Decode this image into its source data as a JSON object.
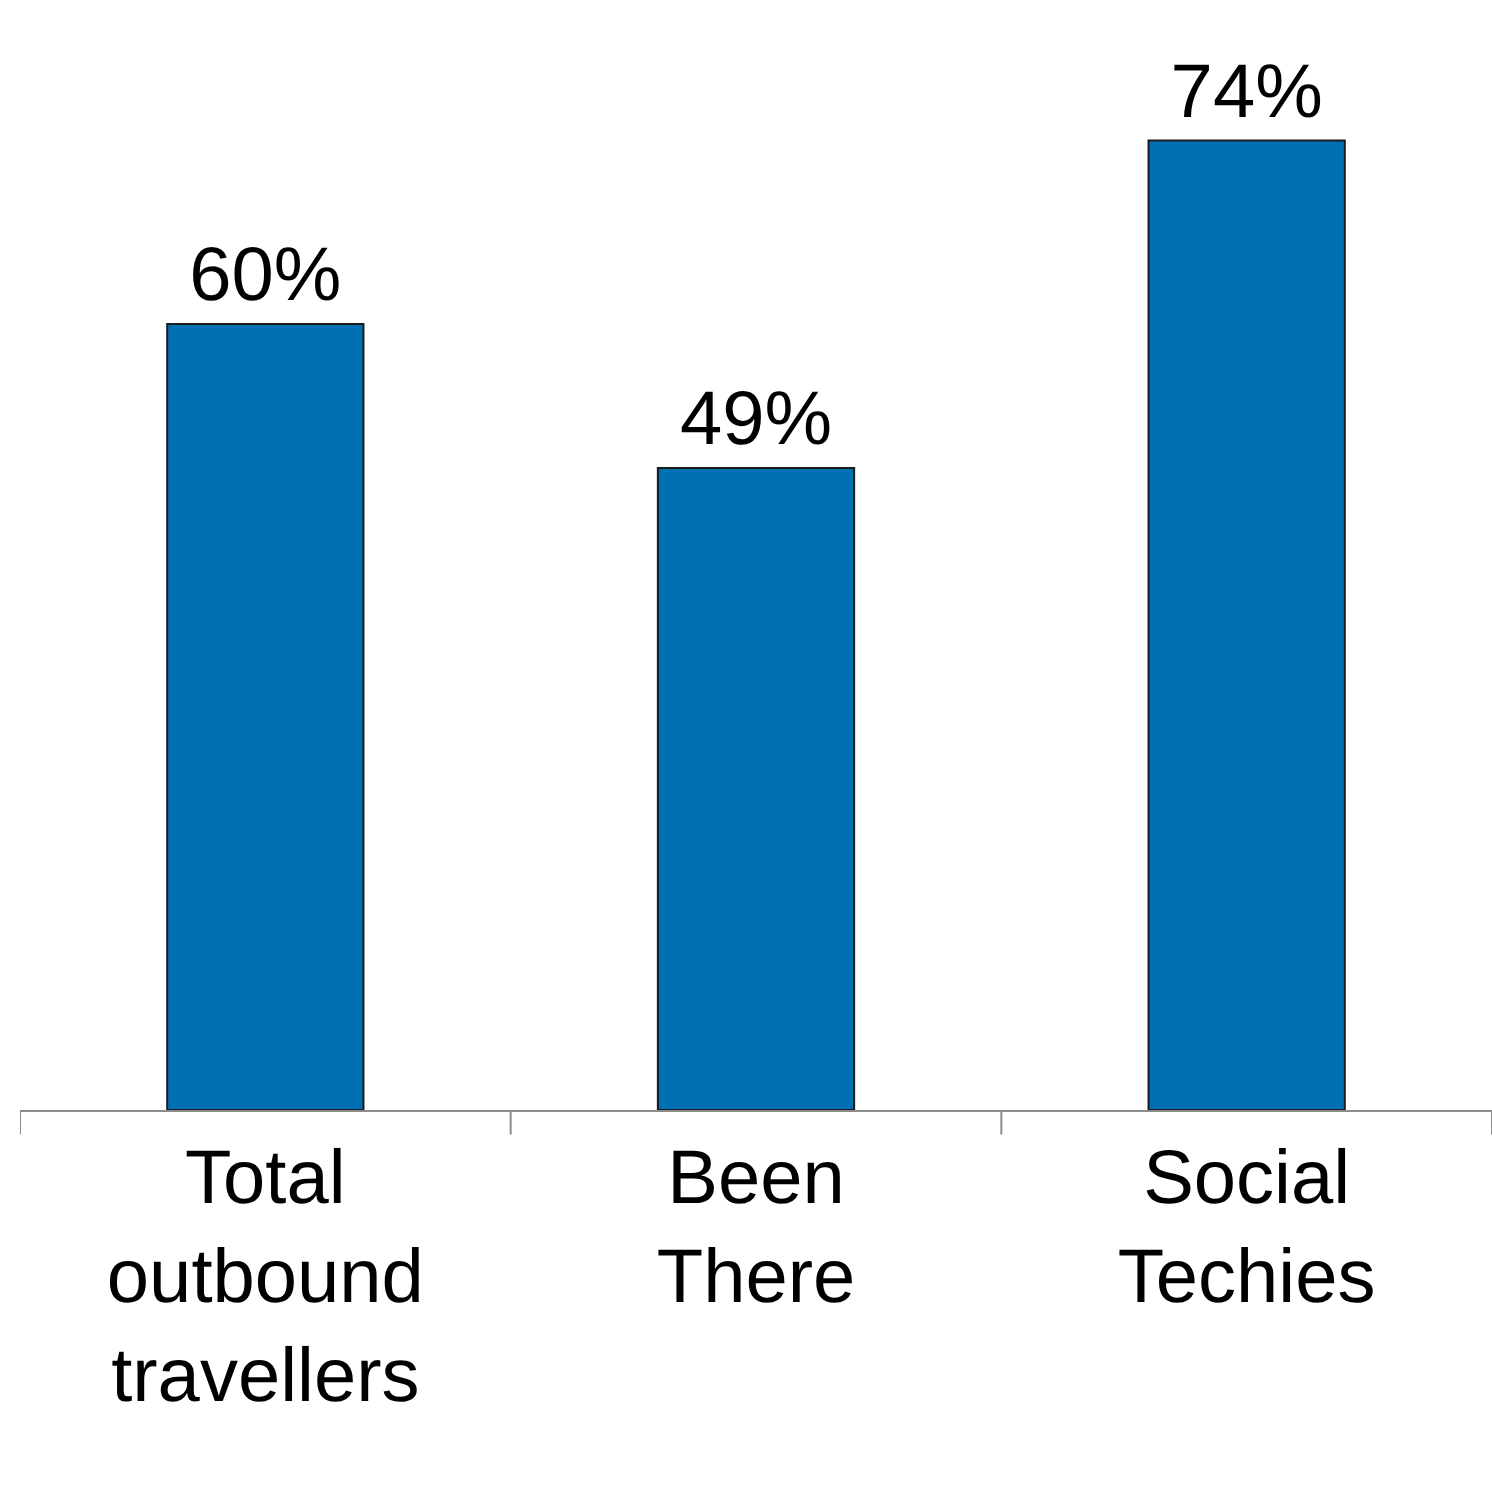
{
  "chart_data": {
    "type": "bar",
    "categories": [
      "Total outbound travellers",
      "Been There",
      "Social Techies"
    ],
    "values": [
      60,
      49,
      74
    ],
    "value_labels": [
      "60%",
      "49%",
      "74%"
    ],
    "color": "#0070b4"
  }
}
